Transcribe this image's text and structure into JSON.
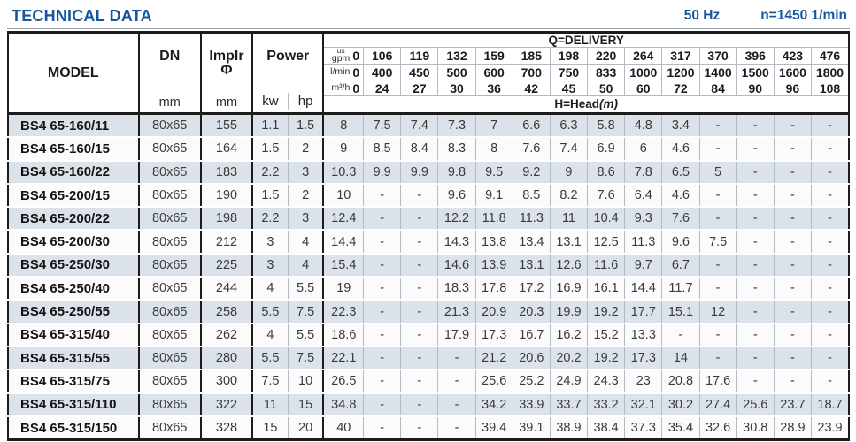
{
  "page": {
    "title": "TECHNICAL DATA",
    "frequency": "50 Hz",
    "speed": "n=1450 1/min"
  },
  "table": {
    "headers": {
      "model": "MODEL",
      "dn": "DN",
      "implr_line1": "Implr",
      "implr_line2": "Φ",
      "mm": "mm",
      "power": "Power",
      "kw": "kw",
      "hp": "hp",
      "q_delivery": "Q=DELIVERY",
      "head": "H=Head",
      "head_unit": "(m)"
    },
    "flow_rows": [
      {
        "unit_top": "us",
        "unit": "gpm",
        "zero": "0",
        "values": [
          "106",
          "119",
          "132",
          "159",
          "185",
          "198",
          "220",
          "264",
          "317",
          "370",
          "396",
          "423",
          "476"
        ]
      },
      {
        "unit_top": "",
        "unit": "l/min",
        "zero": "0",
        "values": [
          "400",
          "450",
          "500",
          "600",
          "700",
          "750",
          "833",
          "1000",
          "1200",
          "1400",
          "1500",
          "1600",
          "1800"
        ]
      },
      {
        "unit_top": "",
        "unit": "m³/h",
        "zero": "0",
        "values": [
          "24",
          "27",
          "30",
          "36",
          "42",
          "45",
          "50",
          "60",
          "72",
          "84",
          "90",
          "96",
          "108"
        ]
      }
    ],
    "rows": [
      {
        "model": "BS4 65-160/11",
        "dn": "80x65",
        "implr": "155",
        "kw": "1.1",
        "hp": "1.5",
        "head": [
          "8",
          "7.5",
          "7.4",
          "7.3",
          "7",
          "6.6",
          "6.3",
          "5.8",
          "4.8",
          "3.4",
          "-",
          "-",
          "-",
          "-"
        ]
      },
      {
        "model": "BS4 65-160/15",
        "dn": "80x65",
        "implr": "164",
        "kw": "1.5",
        "hp": "2",
        "head": [
          "9",
          "8.5",
          "8.4",
          "8.3",
          "8",
          "7.6",
          "7.4",
          "6.9",
          "6",
          "4.6",
          "-",
          "-",
          "-",
          "-"
        ]
      },
      {
        "model": "BS4 65-160/22",
        "dn": "80x65",
        "implr": "183",
        "kw": "2.2",
        "hp": "3",
        "head": [
          "10.3",
          "9.9",
          "9.9",
          "9.8",
          "9.5",
          "9.2",
          "9",
          "8.6",
          "7.8",
          "6.5",
          "5",
          "-",
          "-",
          "-"
        ]
      },
      {
        "model": "BS4 65-200/15",
        "dn": "80x65",
        "implr": "190",
        "kw": "1.5",
        "hp": "2",
        "head": [
          "10",
          "-",
          "-",
          "9.6",
          "9.1",
          "8.5",
          "8.2",
          "7.6",
          "6.4",
          "4.6",
          "-",
          "-",
          "-",
          "-"
        ]
      },
      {
        "model": "BS4 65-200/22",
        "dn": "80x65",
        "implr": "198",
        "kw": "2.2",
        "hp": "3",
        "head": [
          "12.4",
          "-",
          "-",
          "12.2",
          "11.8",
          "11.3",
          "11",
          "10.4",
          "9.3",
          "7.6",
          "-",
          "-",
          "-",
          "-"
        ]
      },
      {
        "model": "BS4 65-200/30",
        "dn": "80x65",
        "implr": "212",
        "kw": "3",
        "hp": "4",
        "head": [
          "14.4",
          "-",
          "-",
          "14.3",
          "13.8",
          "13.4",
          "13.1",
          "12.5",
          "11.3",
          "9.6",
          "7.5",
          "-",
          "-",
          "-"
        ]
      },
      {
        "model": "BS4 65-250/30",
        "dn": "80x65",
        "implr": "225",
        "kw": "3",
        "hp": "4",
        "head": [
          "15.4",
          "-",
          "-",
          "14.6",
          "13.9",
          "13.1",
          "12.6",
          "11.6",
          "9.7",
          "6.7",
          "-",
          "-",
          "-",
          "-"
        ]
      },
      {
        "model": "BS4 65-250/40",
        "dn": "80x65",
        "implr": "244",
        "kw": "4",
        "hp": "5.5",
        "head": [
          "19",
          "-",
          "-",
          "18.3",
          "17.8",
          "17.2",
          "16.9",
          "16.1",
          "14.4",
          "11.7",
          "-",
          "-",
          "-",
          "-"
        ]
      },
      {
        "model": "BS4 65-250/55",
        "dn": "80x65",
        "implr": "258",
        "kw": "5.5",
        "hp": "7.5",
        "head": [
          "22.3",
          "-",
          "-",
          "21.3",
          "20.9",
          "20.3",
          "19.9",
          "19.2",
          "17.7",
          "15.1",
          "12",
          "-",
          "-",
          "-"
        ]
      },
      {
        "model": "BS4 65-315/40",
        "dn": "80x65",
        "implr": "262",
        "kw": "4",
        "hp": "5.5",
        "head": [
          "18.6",
          "-",
          "-",
          "17.9",
          "17.3",
          "16.7",
          "16.2",
          "15.2",
          "13.3",
          "-",
          "-",
          "-",
          "-",
          "-"
        ]
      },
      {
        "model": "BS4 65-315/55",
        "dn": "80x65",
        "implr": "280",
        "kw": "5.5",
        "hp": "7.5",
        "head": [
          "22.1",
          "-",
          "-",
          "-",
          "21.2",
          "20.6",
          "20.2",
          "19.2",
          "17.3",
          "14",
          "-",
          "-",
          "-",
          "-"
        ]
      },
      {
        "model": "BS4 65-315/75",
        "dn": "80x65",
        "implr": "300",
        "kw": "7.5",
        "hp": "10",
        "head": [
          "26.5",
          "-",
          "-",
          "-",
          "25.6",
          "25.2",
          "24.9",
          "24.3",
          "23",
          "20.8",
          "17.6",
          "-",
          "-",
          "-"
        ]
      },
      {
        "model": "BS4 65-315/110",
        "dn": "80x65",
        "implr": "322",
        "kw": "11",
        "hp": "15",
        "head": [
          "34.8",
          "-",
          "-",
          "-",
          "34.2",
          "33.9",
          "33.7",
          "33.2",
          "32.1",
          "30.2",
          "27.4",
          "25.6",
          "23.7",
          "18.7"
        ]
      },
      {
        "model": "BS4 65-315/150",
        "dn": "80x65",
        "implr": "328",
        "kw": "15",
        "hp": "20",
        "head": [
          "40",
          "-",
          "-",
          "-",
          "39.4",
          "39.1",
          "38.9",
          "38.4",
          "37.3",
          "35.4",
          "32.6",
          "30.8",
          "28.9",
          "23.9"
        ]
      }
    ]
  }
}
